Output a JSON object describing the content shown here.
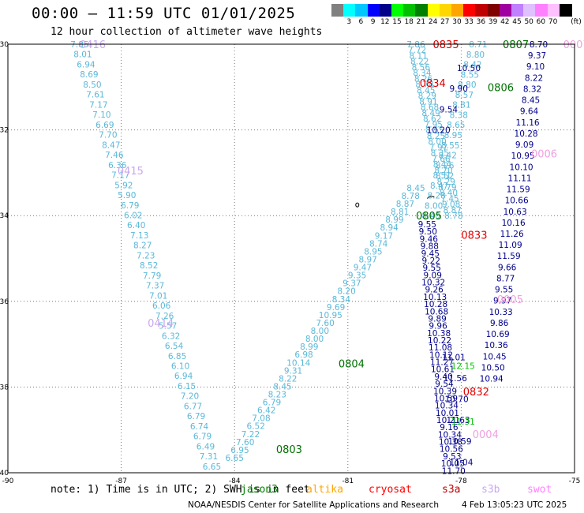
{
  "header": {
    "title": "00:00 – 11:59 UTC 01/01/2025",
    "subtitle": "12 hour collection of altimeter wave heights"
  },
  "legend": {
    "unit": "(ft)",
    "items": [
      {
        "label": "",
        "color": "#808080"
      },
      {
        "label": "3",
        "color": "#00ffff"
      },
      {
        "label": "6",
        "color": "#00c8ff"
      },
      {
        "label": "9",
        "color": "#0000ff"
      },
      {
        "label": "12",
        "color": "#00008b"
      },
      {
        "label": "15",
        "color": "#00ff00"
      },
      {
        "label": "18",
        "color": "#00c000"
      },
      {
        "label": "21",
        "color": "#008000"
      },
      {
        "label": "24",
        "color": "#ffff00"
      },
      {
        "label": "27",
        "color": "#ffd700"
      },
      {
        "label": "30",
        "color": "#ffa500"
      },
      {
        "label": "33",
        "color": "#ff0000"
      },
      {
        "label": "36",
        "color": "#c00000"
      },
      {
        "label": "39",
        "color": "#800000"
      },
      {
        "label": "42",
        "color": "#a000a0"
      },
      {
        "label": "45",
        "color": "#c080ff"
      },
      {
        "label": "50",
        "color": "#e0c0ff"
      },
      {
        "label": "60",
        "color": "#ff80ff"
      },
      {
        "label": "70",
        "color": "#ffc0ff"
      },
      {
        "label": "",
        "color": "#000000"
      }
    ]
  },
  "axes": {
    "lon_min": -90,
    "lon_max": -75,
    "lat_min": -40,
    "lat_max": -30,
    "lon_ticks": [
      "-90",
      "-87",
      "-84",
      "-81",
      "-78",
      "-75"
    ],
    "lat_ticks": [
      "-30",
      "-32",
      "-34",
      "-36",
      "-38",
      "-40"
    ]
  },
  "tracks": [
    {
      "color": "#5bb8d8",
      "lon0": -88.1,
      "lat0": -30.0,
      "lon1": -84.6,
      "lat1": -39.85,
      "values": [
        "7.85",
        "8.01",
        "6.94",
        "8.69",
        "8.50",
        "7.61",
        "7.17",
        "7.10",
        "6.69",
        "7.70",
        "8.47",
        "7.46",
        "6.36",
        "7.17",
        "5.92",
        "5.90",
        "6.79",
        "6.02",
        "6.40",
        "7.13",
        "8.27",
        "7.23",
        "8.52",
        "7.79",
        "7.37",
        "7.01",
        "6.06",
        "7.26",
        "5.57",
        "6.32",
        "6.54",
        "6.85",
        "6.10",
        "6.94",
        "6.15",
        "7.20",
        "6.77",
        "6.79",
        "6.74",
        "6.79",
        "6.49",
        "7.31",
        "6.65"
      ]
    },
    {
      "color": "#5bb8d8",
      "lon0": -84.0,
      "lat0": -39.65,
      "lon1": -79.2,
      "lat1": -33.35,
      "values": [
        "6.65",
        "6.95",
        "7.60",
        "7.22",
        "6.52",
        "7.08",
        "6.42",
        "6.79",
        "8.23",
        "8.45",
        "8.22",
        "9.31",
        "10.14",
        "6.98",
        "8.99",
        "8.00",
        "8.00",
        "7.60",
        "10.95",
        "9.69",
        "8.34",
        "8.20",
        "9.37",
        "9.35",
        "9.47",
        "8.97",
        "8.95",
        "8.74",
        "9.17",
        "8.94",
        "8.99",
        "8.81",
        "8.87",
        "8.78",
        "8.45"
      ]
    },
    {
      "color": "#5bb8d8",
      "lon0": -79.2,
      "lat0": -30.0,
      "lon1": -78.2,
      "lat1": -34.0,
      "values": [
        "7.86",
        "7.72",
        "8.11",
        "8.22",
        "8.56",
        "8.34",
        "8.26",
        "8.78",
        "8.45",
        "8.29",
        "8.91",
        "8.68",
        "8.49",
        "8.62",
        "7.95",
        "8.55",
        "8.25",
        "8.00",
        "7.97",
        "8.35",
        "7.66",
        "8.44",
        "8.70",
        "8.52",
        "8.29",
        "8.79",
        "8.40",
        "7.45",
        "9.08",
        "8.87",
        "8.78"
      ]
    },
    {
      "color": "#5bb8d8",
      "lon0": -77.55,
      "lat0": -30.0,
      "lon1": -78.8,
      "lat1": -34.0,
      "values": [
        "8.71",
        "8.80",
        "8.42",
        "8.55",
        "8.80",
        "8.57",
        "8.81",
        "8.38",
        "8.65",
        "8.95",
        "8.55",
        "8.42",
        "8.26",
        "8.51",
        "8.47",
        "8.28",
        "8.00",
        "8.40"
      ]
    },
    {
      "color": "#00008b",
      "lon0": -77.8,
      "lat0": -30.55,
      "lon1": -78.6,
      "lat1": -32.0,
      "values": [
        "10.50",
        "9.90",
        "9.54",
        "10.20"
      ]
    },
    {
      "color": "#00008b",
      "lon0": -78.9,
      "lat0": -34.2,
      "lon1": -78.2,
      "lat1": -39.95,
      "values": [
        "9.55",
        "9.50",
        "9.46",
        "9.88",
        "9.45",
        "9.22",
        "9.55",
        "9.09",
        "10.32",
        "9.26",
        "10.13",
        "10.28",
        "10.68",
        "9.89",
        "9.96",
        "10.38",
        "10.22",
        "11.08",
        "10.12",
        "11.27",
        "10.61",
        "9.40",
        "9.54",
        "10.39",
        "10.59",
        "10.34",
        "10.01",
        "10.21",
        "9.16",
        "10.34",
        "10.38",
        "10.56",
        "9.53",
        "10.05",
        "11.70"
      ]
    },
    {
      "color": "#00008b",
      "lon0": -78.2,
      "lat0": -37.3,
      "lon1": -78.0,
      "lat1": -39.75,
      "values": [
        "11.01",
        "11.56",
        "10.70",
        "11.63",
        "10.59",
        "11.04"
      ]
    },
    {
      "color": "#00008b",
      "lon0": -75.95,
      "lat0": -30.0,
      "lon1": -77.2,
      "lat1": -37.8,
      "values": [
        "8.70",
        "9.37",
        "9.10",
        "8.22",
        "8.32",
        "8.45",
        "9.64",
        "11.16",
        "10.28",
        "9.09",
        "10.95",
        "10.10",
        "11.11",
        "11.59",
        "10.66",
        "10.63",
        "10.16",
        "11.26",
        "11.09",
        "11.59",
        "9.66",
        "8.77",
        "9.55",
        "9.97",
        "10.33",
        "9.86",
        "10.69",
        "10.36",
        "10.45",
        "10.50",
        "10.94"
      ]
    },
    {
      "color": "#00c000",
      "lon0": -77.95,
      "lat0": -37.5,
      "lon1": -77.95,
      "lat1": -38.8,
      "values": [
        "12.15",
        "11.31"
      ]
    }
  ],
  "pass_labels": [
    {
      "id": "0416",
      "color": "#c8a8f0",
      "lon": -88.1,
      "lat": -30.0
    },
    {
      "id": "0415",
      "color": "#c8a8f0",
      "lon": -87.1,
      "lat": -32.95
    },
    {
      "id": "0414",
      "color": "#c8a8f0",
      "lon": -86.3,
      "lat": -36.5
    },
    {
      "id": "0835",
      "color": "#e00000",
      "lon": -78.75,
      "lat": -30.0
    },
    {
      "id": "0834",
      "color": "#e00000",
      "lon": -79.1,
      "lat": -30.9
    },
    {
      "id": "0833",
      "color": "#e00000",
      "lon": -78.0,
      "lat": -34.45
    },
    {
      "id": "0832",
      "color": "#e00000",
      "lon": -77.95,
      "lat": -38.1
    },
    {
      "id": "0807",
      "color": "#007000",
      "lon": -76.9,
      "lat": -30.0
    },
    {
      "id": "0806",
      "color": "#007000",
      "lon": -77.3,
      "lat": -31.0
    },
    {
      "id": "0805",
      "color": "#007000",
      "lon": -79.2,
      "lat": -34.0
    },
    {
      "id": "0804",
      "color": "#007000",
      "lon": -81.25,
      "lat": -37.45
    },
    {
      "id": "0803",
      "color": "#007000",
      "lon": -82.9,
      "lat": -39.45
    },
    {
      "id": "0007",
      "color": "#f0a0e0",
      "lon": -75.3,
      "lat": -30.0
    },
    {
      "id": "0006",
      "color": "#f0a0e0",
      "lon": -76.15,
      "lat": -32.55
    },
    {
      "id": "0005",
      "color": "#f0a0e0",
      "lon": -77.05,
      "lat": -35.95
    },
    {
      "id": "0004",
      "color": "#f0a0e0",
      "lon": -77.7,
      "lat": -39.1
    }
  ],
  "footer": {
    "note": "note:  1) Time is in UTC; 2) SWH is in feet",
    "satellites": [
      {
        "name": "jason3",
        "color": "#008000"
      },
      {
        "name": "altika",
        "color": "#ffa500"
      },
      {
        "name": "cryosat",
        "color": "#ff0000"
      },
      {
        "name": "s3a",
        "color": "#c00000"
      },
      {
        "name": "s3b",
        "color": "#c8a8f0"
      },
      {
        "name": "swot",
        "color": "#ff80ff"
      }
    ],
    "credit": "NOAA/NESDIS Center for Satellite Applications and Research",
    "generated": "4 Feb 13:05:23 UTC 2025"
  }
}
